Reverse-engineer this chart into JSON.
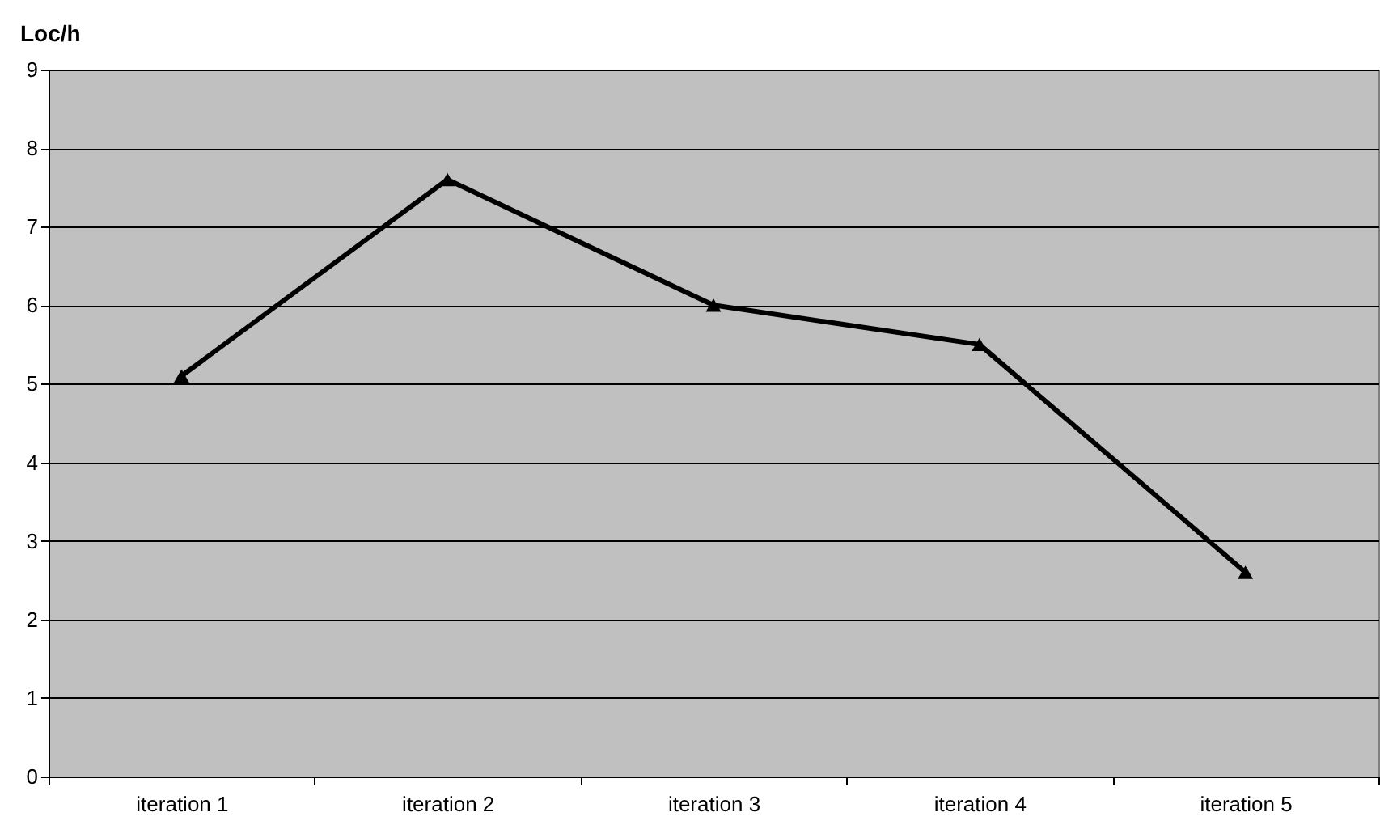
{
  "chart_data": {
    "type": "line",
    "ylabel": "Loc/h",
    "categories": [
      "iteration 1",
      "iteration 2",
      "iteration 3",
      "iteration 4",
      "iteration 5"
    ],
    "series": [
      {
        "color": "#000000",
        "values": [
          5.1,
          7.6,
          6.0,
          5.5,
          2.6
        ]
      }
    ],
    "ylim": [
      0,
      9
    ],
    "yticks": [
      0,
      1,
      2,
      3,
      4,
      5,
      6,
      7,
      8,
      9
    ],
    "grid": "y",
    "marker": "triangle",
    "line_style": "solid"
  }
}
